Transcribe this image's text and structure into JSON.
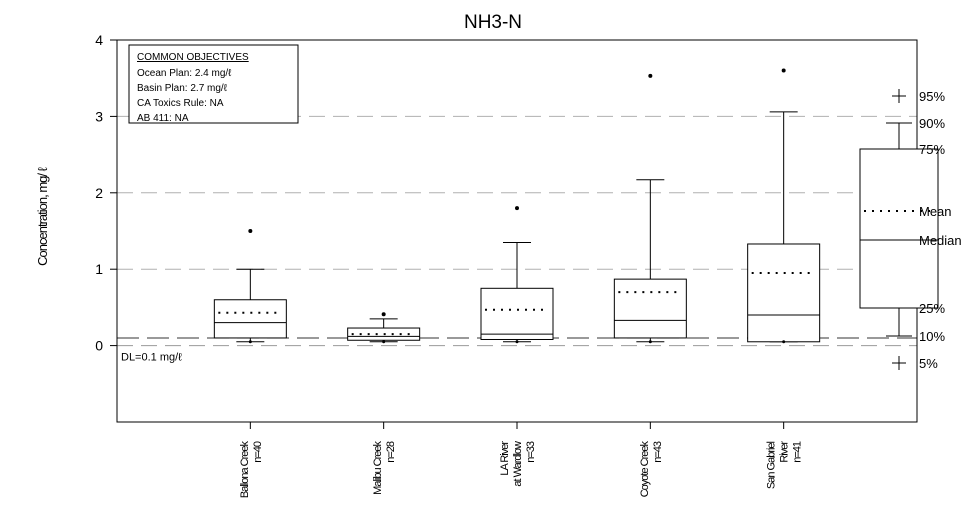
{
  "chart_data": {
    "type": "box",
    "title": "NH3-N",
    "ylabel": "Concentration, mg/ ℓ",
    "ylim": [
      -1,
      4
    ],
    "yticks": [
      0,
      1,
      2,
      3,
      4
    ],
    "grid": "horizontal dashed",
    "detection_limit": {
      "value": 0.1,
      "label": "DL=0.1 mg/ℓ"
    },
    "objectives": {
      "heading": "COMMON OBJECTIVES",
      "lines": [
        "Ocean Plan: 2.4 mg/ℓ",
        "Basin Plan: 2.7 mg/ℓ",
        "CA Toxics Rule: NA",
        "AB 411: NA"
      ]
    },
    "categories": [
      {
        "lines": [
          "Ballona Creek",
          "n=40"
        ],
        "p5": 0.05,
        "p10": 0.05,
        "p25": 0.1,
        "median": 0.3,
        "mean": 0.43,
        "p75": 0.6,
        "p90": 1.0,
        "p95": 1.5
      },
      {
        "lines": [
          "Malibu Creek",
          "n=28"
        ],
        "p5": 0.05,
        "p10": 0.05,
        "p25": 0.07,
        "median": 0.12,
        "mean": 0.15,
        "p75": 0.23,
        "p90": 0.35,
        "p95": 0.41
      },
      {
        "lines": [
          "LA River",
          "at Wardlow",
          "n=33"
        ],
        "p5": 0.05,
        "p10": 0.05,
        "p25": 0.08,
        "median": 0.15,
        "mean": 0.47,
        "p75": 0.75,
        "p90": 1.35,
        "p95": 1.8
      },
      {
        "lines": [
          "Coyote Creek",
          "n=43"
        ],
        "p5": 0.05,
        "p10": 0.05,
        "p25": 0.1,
        "median": 0.33,
        "mean": 0.7,
        "p75": 0.87,
        "p90": 2.17,
        "p95": 3.53
      },
      {
        "lines": [
          "San Gabriel",
          "River",
          "n=41"
        ],
        "p5": 0.05,
        "p10": 0.05,
        "p25": 0.05,
        "median": 0.4,
        "mean": 0.95,
        "p75": 1.33,
        "p90": 3.06,
        "p95": 3.6
      }
    ],
    "legend": {
      "placement": "right",
      "labels": {
        "p95": "95%",
        "p90": "90%",
        "p75": "75%",
        "mean": "Mean",
        "median": "Median",
        "p25": "25%",
        "p10": "10%",
        "p5": "5%"
      }
    }
  }
}
